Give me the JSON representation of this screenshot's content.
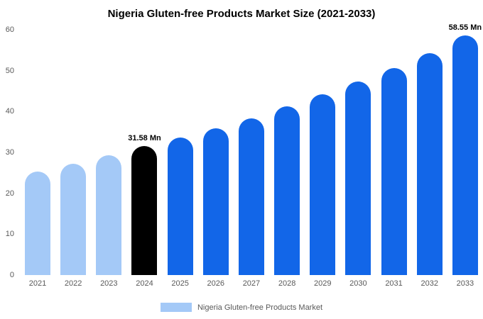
{
  "title": "Nigeria Gluten-free Products Market Size (2021-2033)",
  "legend": {
    "label": "Nigeria Gluten-free Products Market",
    "swatch_color": "#a4c9f7"
  },
  "colors": {
    "past": "#a4c9f7",
    "highlight": "#000000",
    "future": "#1266e8"
  },
  "chart_data": {
    "type": "bar",
    "title": "Nigeria Gluten-free Products Market Size (2021-2033)",
    "categories": [
      "2021",
      "2022",
      "2023",
      "2024",
      "2025",
      "2026",
      "2027",
      "2028",
      "2029",
      "2030",
      "2031",
      "2032",
      "2033"
    ],
    "values": [
      25.3,
      27.3,
      29.3,
      31.58,
      33.7,
      35.9,
      38.4,
      41.2,
      44.2,
      47.3,
      50.6,
      54.3,
      58.55
    ],
    "bar_colors": [
      "past",
      "past",
      "past",
      "highlight",
      "future",
      "future",
      "future",
      "future",
      "future",
      "future",
      "future",
      "future",
      "future"
    ],
    "annotations": [
      {
        "index": 3,
        "text": "31.58 Mn"
      },
      {
        "index": 12,
        "text": "58.55 Mn"
      }
    ],
    "xlabel": "",
    "ylabel": "",
    "ylim": [
      0,
      60
    ],
    "yticks": [
      0,
      10,
      20,
      30,
      40,
      50,
      60
    ],
    "grid": false,
    "legend_position": "bottom"
  }
}
